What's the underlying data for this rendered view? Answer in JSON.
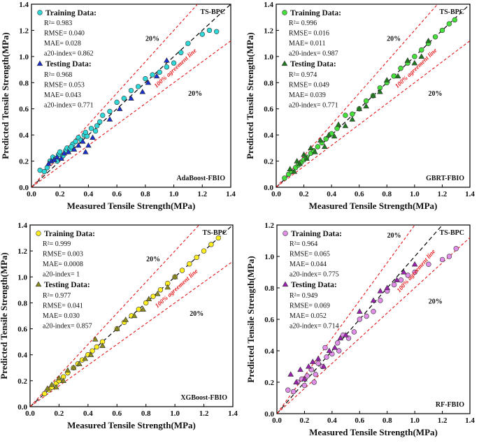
{
  "chart_data": [
    {
      "type": "scatter",
      "model": "AdaBoost-FBIO",
      "corner_label": "TS-BPC",
      "xlabel": "Measured Tensile Strength(MPa)",
      "ylabel": "Predicted Tensile Strength(MPa)",
      "xlim": [
        0,
        1.4
      ],
      "ylim": [
        0,
        1.4
      ],
      "ticks": [
        "0.0",
        "0.2",
        "0.4",
        "0.6",
        "0.8",
        "1.0",
        "1.2",
        "1.4"
      ],
      "tick_values": [
        0,
        0.2,
        0.4,
        0.6,
        0.8,
        1.0,
        1.2,
        1.4
      ],
      "band_label_upper": "20%",
      "band_label_lower": "20%",
      "agreement_label": "100% agreement line",
      "train_color": "#2fd8d8",
      "test_color": "#1a2fd0",
      "train": {
        "title": "Training Data:",
        "stats": [
          "R²= 0.983",
          "RMSE= 0.040",
          "MAE= 0.028",
          "a20-index= 0.862"
        ],
        "x": [
          0.06,
          0.09,
          0.11,
          0.13,
          0.15,
          0.17,
          0.19,
          0.2,
          0.22,
          0.24,
          0.25,
          0.27,
          0.29,
          0.31,
          0.33,
          0.35,
          0.37,
          0.39,
          0.42,
          0.45,
          0.48,
          0.5,
          0.55,
          0.6,
          0.65,
          0.7,
          0.75,
          0.8,
          0.85,
          0.9,
          0.95,
          1.0,
          1.05,
          1.1,
          1.2,
          1.25,
          1.3,
          0.18,
          0.28,
          0.38,
          0.46
        ],
        "y": [
          0.13,
          0.12,
          0.15,
          0.2,
          0.23,
          0.22,
          0.25,
          0.27,
          0.24,
          0.28,
          0.3,
          0.29,
          0.33,
          0.35,
          0.38,
          0.36,
          0.4,
          0.39,
          0.45,
          0.43,
          0.5,
          0.55,
          0.58,
          0.65,
          0.68,
          0.74,
          0.77,
          0.83,
          0.86,
          0.88,
          0.92,
          0.95,
          1.03,
          1.1,
          1.17,
          1.2,
          1.19,
          0.2,
          0.31,
          0.42,
          0.47
        ]
      },
      "test": {
        "title": "Testing Data:",
        "stats": [
          "R²= 0.968",
          "RMSE= 0.053",
          "MAE= 0.043",
          "a20-index= 0.771"
        ],
        "x": [
          0.12,
          0.14,
          0.16,
          0.18,
          0.21,
          0.23,
          0.26,
          0.3,
          0.33,
          0.36,
          0.4,
          0.43,
          0.38,
          0.55,
          0.62,
          0.7,
          0.78,
          0.82,
          0.88,
          0.95
        ],
        "y": [
          0.18,
          0.2,
          0.21,
          0.23,
          0.22,
          0.26,
          0.27,
          0.29,
          0.32,
          0.35,
          0.32,
          0.38,
          0.27,
          0.52,
          0.6,
          0.68,
          0.73,
          0.8,
          0.85,
          0.97
        ]
      }
    },
    {
      "type": "scatter",
      "model": "GBRT-FBIO",
      "corner_label": "TS-BPC",
      "xlabel": "Measured Tensile Strength(MPa)",
      "ylabel": "Predicted Tensile Strength(MPa)",
      "xlim": [
        0,
        1.4
      ],
      "ylim": [
        0,
        1.4
      ],
      "ticks": [
        "0.0",
        "0.2",
        "0.4",
        "0.6",
        "0.8",
        "1.0",
        "1.2",
        "1.4"
      ],
      "tick_values": [
        0,
        0.2,
        0.4,
        0.6,
        0.8,
        1.0,
        1.2,
        1.4
      ],
      "band_label_upper": "20%",
      "band_label_lower": "20%",
      "agreement_label": "100% agreement line",
      "train_color": "#45e03a",
      "test_color": "#1f7a1f",
      "train": {
        "title": "Training Data:",
        "stats": [
          "R²= 0.996",
          "RMSE= 0.016",
          "MAE= 0.011",
          "a20-index= 0.987"
        ],
        "x": [
          0.06,
          0.09,
          0.11,
          0.14,
          0.16,
          0.18,
          0.2,
          0.22,
          0.25,
          0.27,
          0.3,
          0.33,
          0.36,
          0.4,
          0.44,
          0.5,
          0.55,
          0.6,
          0.65,
          0.7,
          0.75,
          0.8,
          0.85,
          0.9,
          0.95,
          1.0,
          1.05,
          1.1,
          1.15,
          1.2,
          1.25,
          1.29
        ],
        "y": [
          0.07,
          0.1,
          0.12,
          0.15,
          0.17,
          0.19,
          0.21,
          0.23,
          0.26,
          0.28,
          0.31,
          0.34,
          0.37,
          0.41,
          0.45,
          0.55,
          0.56,
          0.6,
          0.66,
          0.7,
          0.76,
          0.8,
          0.85,
          0.91,
          0.95,
          1.0,
          1.05,
          1.1,
          1.15,
          1.2,
          1.25,
          1.28
        ]
      },
      "test": {
        "title": "Testing Data:",
        "stats": [
          "R²= 0.974",
          "RMSE= 0.049",
          "MAE= 0.039",
          "a20-index= 0.771"
        ],
        "x": [
          0.1,
          0.13,
          0.15,
          0.17,
          0.2,
          0.22,
          0.25,
          0.28,
          0.32,
          0.35,
          0.38,
          0.42,
          0.45,
          0.5,
          0.55,
          0.6,
          0.65,
          0.7,
          0.75,
          0.8,
          0.88,
          0.95,
          1.0,
          1.05,
          1.1
        ],
        "y": [
          0.14,
          0.12,
          0.2,
          0.18,
          0.25,
          0.22,
          0.3,
          0.27,
          0.36,
          0.31,
          0.4,
          0.39,
          0.48,
          0.47,
          0.52,
          0.6,
          0.62,
          0.7,
          0.73,
          0.82,
          0.85,
          0.97,
          0.95,
          1.0,
          1.12
        ]
      }
    },
    {
      "type": "scatter",
      "model": "XGBoost-FBIO",
      "corner_label": "TS-BPC",
      "xlabel": "Measured Tensile Strength(MPa)",
      "ylabel": "Predicted Tensile Strength(MPa)",
      "xlim": [
        0,
        1.4
      ],
      "ylim": [
        0,
        1.4
      ],
      "ticks": [
        "0.0",
        "0.2",
        "0.4",
        "0.6",
        "0.8",
        "1.0",
        "1.2",
        "1.4"
      ],
      "tick_values": [
        0,
        0.2,
        0.4,
        0.6,
        0.8,
        1.0,
        1.2,
        1.4
      ],
      "band_label_upper": "20%",
      "band_label_lower": "20%",
      "agreement_label": "100% agreement line",
      "train_color": "#ffee1f",
      "test_color": "#8a8a1f",
      "train": {
        "title": "Training Data:",
        "stats": [
          "R²= 0.999",
          "RMSE= 0.003",
          "MAE= 0.0008",
          "a20-index= 1"
        ],
        "x": [
          0.1,
          0.13,
          0.15,
          0.18,
          0.2,
          0.23,
          0.26,
          0.3,
          0.33,
          0.36,
          0.4,
          0.43,
          0.46,
          0.5,
          0.6,
          0.65,
          0.7,
          0.75,
          0.8,
          0.85,
          0.9,
          0.95,
          1.0,
          1.05,
          1.1,
          1.15,
          1.2,
          1.25,
          1.3
        ],
        "y": [
          0.1,
          0.13,
          0.15,
          0.18,
          0.2,
          0.23,
          0.26,
          0.3,
          0.33,
          0.36,
          0.4,
          0.43,
          0.46,
          0.5,
          0.6,
          0.65,
          0.7,
          0.75,
          0.8,
          0.85,
          0.9,
          0.95,
          1.0,
          1.05,
          1.1,
          1.15,
          1.2,
          1.25,
          1.3
        ]
      },
      "test": {
        "title": "Testing Data:",
        "stats": [
          "R²= 0.977",
          "RMSE= 0.041",
          "MAE= 0.030",
          "a20-index= 0.857"
        ],
        "x": [
          0.12,
          0.15,
          0.18,
          0.2,
          0.23,
          0.26,
          0.3,
          0.34,
          0.38,
          0.42,
          0.45,
          0.5,
          0.6,
          0.66,
          0.72,
          0.78,
          0.82,
          0.88,
          0.95,
          1.0
        ],
        "y": [
          0.14,
          0.17,
          0.15,
          0.22,
          0.2,
          0.28,
          0.3,
          0.33,
          0.37,
          0.4,
          0.52,
          0.47,
          0.6,
          0.67,
          0.7,
          0.75,
          0.83,
          0.87,
          0.92,
          1.0
        ]
      }
    },
    {
      "type": "scatter",
      "model": "RF-FBIO",
      "corner_label": "TS-BPC",
      "xlabel": "Measured Tensile Strength(MPa)",
      "ylabel": "Predicted Tensile Strength(MPa)",
      "xlim": [
        0,
        1.4
      ],
      "ylim": [
        0,
        1.2
      ],
      "ticks": [
        "0.0",
        "0.2",
        "0.4",
        "0.6",
        "0.8",
        "1.0",
        "1.2",
        "1.4"
      ],
      "tick_values": [
        0,
        0.2,
        0.4,
        0.6,
        0.8,
        1.0,
        1.2,
        1.4
      ],
      "yticks": [
        "0.0",
        "0.2",
        "0.4",
        "0.6",
        "0.8",
        "1.0",
        "1.2"
      ],
      "ytick_values": [
        0,
        0.2,
        0.4,
        0.6,
        0.8,
        1.0,
        1.2
      ],
      "band_label_upper": "20%",
      "band_label_lower": "20%",
      "agreement_label": "100% agreement line",
      "train_color": "#e08ee8",
      "test_color": "#9c20b0",
      "train": {
        "title": "Training Data:",
        "stats": [
          "R²= 0.964",
          "RMSE= 0.065",
          "MAE= 0.044",
          "a20-index= 0.775"
        ],
        "x": [
          0.08,
          0.12,
          0.15,
          0.18,
          0.2,
          0.22,
          0.25,
          0.28,
          0.3,
          0.33,
          0.36,
          0.4,
          0.44,
          0.48,
          0.52,
          0.56,
          0.6,
          0.65,
          0.7,
          0.75,
          0.8,
          0.85,
          0.9,
          0.95,
          1.0,
          1.1,
          1.2,
          1.25,
          1.3,
          0.27,
          0.35,
          0.45
        ],
        "y": [
          0.15,
          0.14,
          0.2,
          0.22,
          0.18,
          0.24,
          0.28,
          0.25,
          0.32,
          0.3,
          0.36,
          0.38,
          0.45,
          0.5,
          0.48,
          0.52,
          0.6,
          0.62,
          0.65,
          0.72,
          0.78,
          0.82,
          0.85,
          0.88,
          0.9,
          0.95,
          0.98,
          1.0,
          1.05,
          0.2,
          0.42,
          0.4
        ]
      },
      "test": {
        "title": "Testing Data:",
        "stats": [
          "R²= 0.949",
          "RMSE= 0.069",
          "MAE= 0.052",
          "a20-index= 0.714"
        ],
        "x": [
          0.1,
          0.14,
          0.17,
          0.2,
          0.23,
          0.26,
          0.3,
          0.34,
          0.38,
          0.42,
          0.46,
          0.5,
          0.6,
          0.7,
          0.75,
          0.8,
          0.87,
          0.92,
          1.0
        ],
        "y": [
          0.25,
          0.2,
          0.28,
          0.22,
          0.3,
          0.33,
          0.35,
          0.3,
          0.4,
          0.42,
          0.48,
          0.5,
          0.65,
          0.72,
          0.78,
          0.8,
          0.85,
          0.9,
          0.95
        ]
      }
    }
  ]
}
